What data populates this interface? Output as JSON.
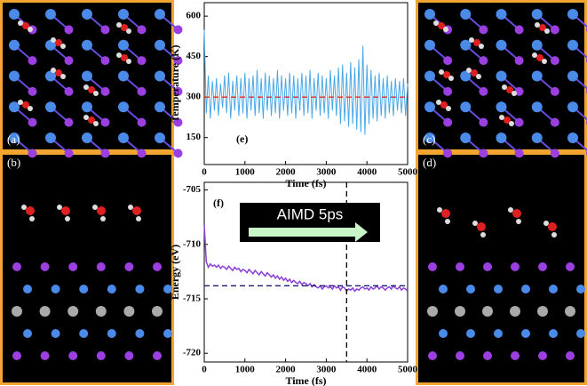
{
  "panels": [
    "(a)",
    "(b)",
    "(c)",
    "(d)"
  ],
  "chart_data": [
    {
      "type": "line",
      "label": "(e)",
      "xlabel": "Time (fs)",
      "ylabel": "Temperature (K)",
      "xlim": [
        0,
        5000
      ],
      "xticks": [
        0,
        1000,
        2000,
        3000,
        4000,
        5000
      ],
      "ylim": [
        50,
        650
      ],
      "yticks": [
        150,
        300,
        450,
        600
      ],
      "hline": 300,
      "hline_color": "#e0302a",
      "color": "#4aa8e8",
      "x": [
        0,
        50,
        100,
        150,
        200,
        250,
        300,
        350,
        400,
        450,
        500,
        550,
        600,
        650,
        700,
        750,
        800,
        850,
        900,
        950,
        1000,
        1050,
        1100,
        1150,
        1200,
        1250,
        1300,
        1350,
        1400,
        1450,
        1500,
        1550,
        1600,
        1650,
        1700,
        1750,
        1800,
        1850,
        1900,
        1950,
        2000,
        2050,
        2100,
        2150,
        2200,
        2250,
        2300,
        2350,
        2400,
        2450,
        2500,
        2550,
        2600,
        2650,
        2700,
        2750,
        2800,
        2850,
        2900,
        2950,
        3000,
        3050,
        3100,
        3150,
        3200,
        3250,
        3300,
        3350,
        3400,
        3450,
        3500,
        3550,
        3600,
        3650,
        3700,
        3750,
        3800,
        3850,
        3900,
        3950,
        4000,
        4050,
        4100,
        4150,
        4200,
        4250,
        4300,
        4350,
        4400,
        4450,
        4500,
        4550,
        4600,
        4650,
        4700,
        4750,
        4800,
        4850,
        4900,
        4950,
        5000
      ],
      "values": [
        550,
        240,
        380,
        220,
        360,
        250,
        370,
        230,
        350,
        260,
        380,
        240,
        390,
        220,
        360,
        250,
        380,
        230,
        370,
        240,
        390,
        220,
        370,
        250,
        380,
        230,
        400,
        240,
        370,
        220,
        390,
        250,
        380,
        230,
        370,
        240,
        400,
        220,
        380,
        250,
        370,
        230,
        390,
        240,
        380,
        220,
        370,
        250,
        390,
        230,
        380,
        240,
        400,
        220,
        370,
        250,
        390,
        230,
        380,
        240,
        370,
        220,
        400,
        250,
        380,
        230,
        410,
        200,
        420,
        210,
        390,
        190,
        430,
        200,
        410,
        180,
        440,
        170,
        490,
        160,
        420,
        200,
        400,
        220,
        380,
        210,
        390,
        230,
        370,
        220,
        380,
        240,
        360,
        230,
        370,
        250,
        360,
        240,
        370,
        230,
        350
      ]
    },
    {
      "type": "line",
      "label": "(f)",
      "xlabel": "Time (fs)",
      "ylabel": "Energy (eV)",
      "xlim": [
        0,
        5000
      ],
      "xticks": [
        0,
        1000,
        2000,
        3000,
        4000,
        5000
      ],
      "ylim": [
        -720.8,
        -704.3
      ],
      "yticks": [
        -705,
        -710,
        -715,
        -720
      ],
      "hline": -713.8,
      "vline": 3500,
      "hline_color": "#1a1a6e",
      "color": "#8a3fd6",
      "annotation": "AIMD 5ps",
      "x": [
        0,
        50,
        100,
        150,
        200,
        250,
        300,
        350,
        400,
        450,
        500,
        550,
        600,
        650,
        700,
        750,
        800,
        850,
        900,
        950,
        1000,
        1050,
        1100,
        1150,
        1200,
        1250,
        1300,
        1350,
        1400,
        1450,
        1500,
        1550,
        1600,
        1650,
        1700,
        1750,
        1800,
        1850,
        1900,
        1950,
        2000,
        2050,
        2100,
        2150,
        2200,
        2250,
        2300,
        2350,
        2400,
        2450,
        2500,
        2550,
        2600,
        2650,
        2700,
        2750,
        2800,
        2850,
        2900,
        2950,
        3000,
        3050,
        3100,
        3150,
        3200,
        3250,
        3300,
        3350,
        3400,
        3450,
        3500,
        3550,
        3600,
        3650,
        3700,
        3750,
        3800,
        3850,
        3900,
        3950,
        4000,
        4050,
        4100,
        4150,
        4200,
        4250,
        4300,
        4350,
        4400,
        4450,
        4500,
        4550,
        4600,
        4650,
        4700,
        4750,
        4800,
        4850,
        4900,
        4950,
        5000
      ],
      "values": [
        -708.2,
        -711.6,
        -712.1,
        -711.8,
        -712.0,
        -711.9,
        -712.1,
        -711.9,
        -712.2,
        -712.0,
        -712.1,
        -712.3,
        -712.0,
        -712.2,
        -712.4,
        -712.1,
        -712.3,
        -712.2,
        -712.5,
        -712.3,
        -712.4,
        -712.6,
        -712.3,
        -712.5,
        -712.7,
        -712.4,
        -712.6,
        -712.8,
        -712.5,
        -712.7,
        -712.9,
        -712.6,
        -712.8,
        -713.0,
        -712.8,
        -713.1,
        -712.9,
        -713.2,
        -713.0,
        -713.3,
        -713.1,
        -713.4,
        -713.2,
        -713.5,
        -713.3,
        -713.5,
        -713.6,
        -713.4,
        -713.7,
        -713.5,
        -713.6,
        -713.8,
        -713.6,
        -713.9,
        -713.7,
        -713.9,
        -714.0,
        -713.8,
        -714.1,
        -713.9,
        -713.8,
        -714.0,
        -713.9,
        -714.1,
        -713.8,
        -714.0,
        -713.9,
        -714.2,
        -713.9,
        -714.0,
        -714.3,
        -714.1,
        -714.2,
        -714.0,
        -714.3,
        -714.1,
        -714.2,
        -714.0,
        -713.9,
        -714.1,
        -714.0,
        -714.2,
        -713.9,
        -714.1,
        -714.0,
        -713.8,
        -714.1,
        -713.9,
        -714.0,
        -714.2,
        -714.0,
        -713.9,
        -714.1,
        -713.8,
        -714.0,
        -714.1,
        -713.9,
        -714.2,
        -714.0,
        -714.1,
        -714.3
      ]
    }
  ]
}
